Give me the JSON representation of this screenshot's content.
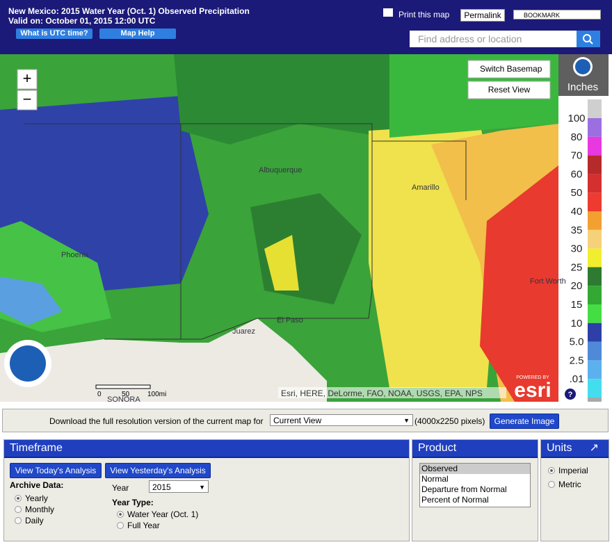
{
  "header": {
    "title": "New Mexico: 2015 Water Year (Oct. 1) Observed Precipitation",
    "valid": "Valid on: October 01, 2015 12:00 UTC",
    "utc_button": "What is UTC time?",
    "help_button": "Map Help",
    "print": "Print this map",
    "permalink": "Permalink",
    "bookmark": "BOOKMARK",
    "search_placeholder": "Find address or location"
  },
  "map": {
    "zoom_in": "+",
    "zoom_out": "−",
    "switch_basemap": "Switch Basemap",
    "reset_view": "Reset View",
    "units_label": "Inches",
    "legend": [
      "100",
      "80",
      "70",
      "60",
      "50",
      "40",
      "35",
      "30",
      "25",
      "20",
      "15",
      "10",
      "5.0",
      "2.5",
      ".01"
    ],
    "places": [
      "Phoenix",
      "Albuquerque",
      "Amarillo",
      "Juarez",
      "El Paso",
      "Fort Worth",
      "SONORA"
    ],
    "scale": [
      "0",
      "50",
      "100mi"
    ],
    "attribution": "Esri, HERE, DeLorme, FAO, NOAA, USGS, EPA, NPS",
    "powered_by": "POWERED BY",
    "esri": "esri",
    "help": "?"
  },
  "download": {
    "text": "Download the full resolution version of the current map for",
    "selected": "Current View",
    "pixels": "(4000x2250 pixels)",
    "button": "Generate Image"
  },
  "timeframe": {
    "title": "Timeframe",
    "today": "View Today's Analysis",
    "yesterday": "View Yesterday's Analysis",
    "archive_label": "Archive Data:",
    "archive_options": [
      "Yearly",
      "Monthly",
      "Daily"
    ],
    "year_label": "Year",
    "year": "2015",
    "year_type_label": "Year Type:",
    "year_types": [
      "Water Year (Oct. 1)",
      "Full Year"
    ]
  },
  "product": {
    "title": "Product",
    "options": [
      "Observed",
      "Normal",
      "Departure from Normal",
      "Percent of Normal"
    ]
  },
  "units": {
    "title": "Units",
    "arrow": "↗",
    "options": [
      "Imperial",
      "Metric"
    ]
  }
}
